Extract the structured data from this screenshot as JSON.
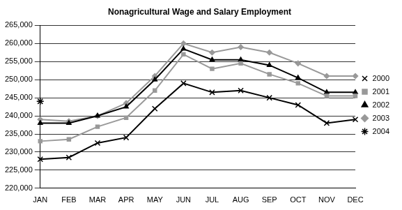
{
  "chart_data": {
    "type": "line",
    "title": "Nonagricultural Wage and Salary Employment",
    "categories": [
      "JAN",
      "FEB",
      "MAR",
      "APR",
      "MAY",
      "JUN",
      "JUL",
      "AUG",
      "SEP",
      "OCT",
      "NOV",
      "DEC"
    ],
    "series": [
      {
        "name": "2000",
        "color": "#000000",
        "marker": "cross",
        "line_style": "solid",
        "values": [
          228000,
          228500,
          232500,
          234000,
          242000,
          249000,
          246500,
          247000,
          245000,
          243000,
          238000,
          239000
        ]
      },
      {
        "name": "2001",
        "color": "#999999",
        "marker": "square",
        "line_style": "solid",
        "values": [
          233000,
          233500,
          237000,
          239500,
          247000,
          257000,
          253000,
          254500,
          251500,
          249000,
          245500,
          245500
        ]
      },
      {
        "name": "2002",
        "color": "#000000",
        "marker": "triangle",
        "line_style": "solid",
        "values": [
          238000,
          238000,
          240000,
          242500,
          250000,
          258500,
          255500,
          255500,
          254000,
          250500,
          246500,
          246500
        ]
      },
      {
        "name": "2003",
        "color": "#999999",
        "marker": "diamond",
        "line_style": "solid",
        "values": [
          239000,
          238500,
          240000,
          243500,
          251000,
          260000,
          257500,
          259000,
          257500,
          254500,
          251000,
          251000
        ]
      },
      {
        "name": "2004",
        "color": "#000000",
        "marker": "star",
        "line_style": "solid",
        "values": [
          244000,
          null,
          null,
          null,
          null,
          null,
          null,
          null,
          null,
          null,
          null,
          null
        ]
      }
    ],
    "ylim": [
      220000,
      265000
    ],
    "yticks": [
      {
        "value": 220000,
        "label": "220,000"
      },
      {
        "value": 225000,
        "label": "225,000"
      },
      {
        "value": 230000,
        "label": "230,000"
      },
      {
        "value": 235000,
        "label": "235,000"
      },
      {
        "value": 240000,
        "label": "240,000"
      },
      {
        "value": 245000,
        "label": "245,000"
      },
      {
        "value": 250000,
        "label": "250,000"
      },
      {
        "value": 255000,
        "label": "255,000"
      },
      {
        "value": 260000,
        "label": "260,000"
      },
      {
        "value": 265000,
        "label": "265,000"
      }
    ],
    "grid": true,
    "legend": "right"
  }
}
